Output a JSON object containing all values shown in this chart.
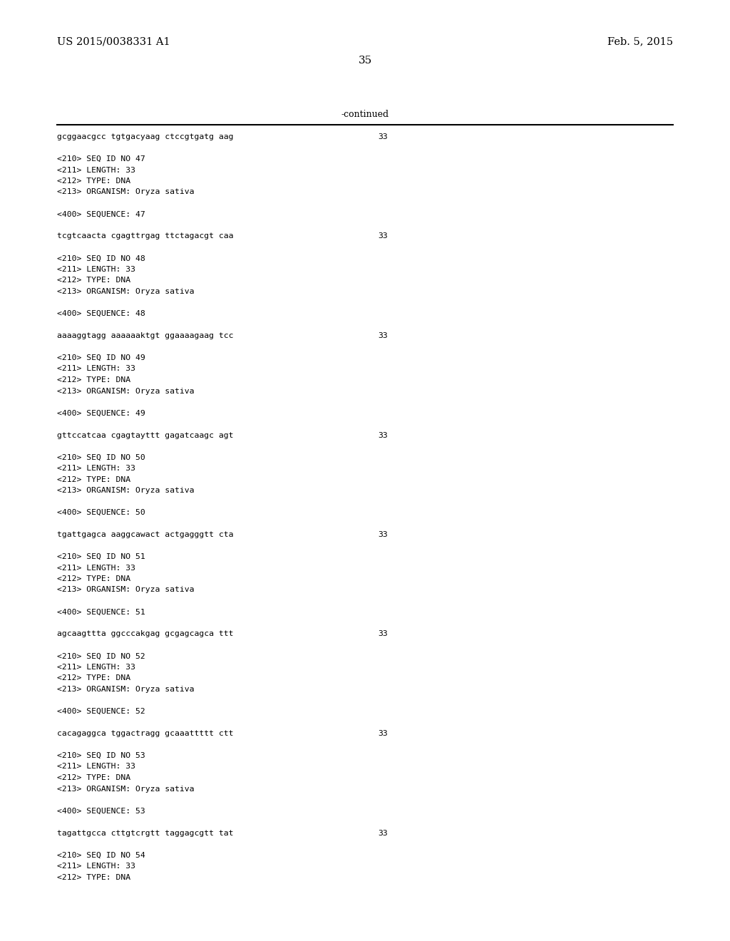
{
  "background_color": "#ffffff",
  "header_left": "US 2015/0038331 A1",
  "header_right": "Feb. 5, 2015",
  "page_number": "35",
  "continued_text": "-continued",
  "content_lines": [
    {
      "text": "gcggaacgcc tgtgacyaag ctccgtgatg aag",
      "number": "33"
    },
    {
      "text": ""
    },
    {
      "text": "<210> SEQ ID NO 47"
    },
    {
      "text": "<211> LENGTH: 33"
    },
    {
      "text": "<212> TYPE: DNA"
    },
    {
      "text": "<213> ORGANISM: Oryza sativa"
    },
    {
      "text": ""
    },
    {
      "text": "<400> SEQUENCE: 47"
    },
    {
      "text": ""
    },
    {
      "text": "tcgtcaacta cgagttrgag ttctagacgt caa",
      "number": "33"
    },
    {
      "text": ""
    },
    {
      "text": "<210> SEQ ID NO 48"
    },
    {
      "text": "<211> LENGTH: 33"
    },
    {
      "text": "<212> TYPE: DNA"
    },
    {
      "text": "<213> ORGANISM: Oryza sativa"
    },
    {
      "text": ""
    },
    {
      "text": "<400> SEQUENCE: 48"
    },
    {
      "text": ""
    },
    {
      "text": "aaaaggtagg aaaaaaktgt ggaaaagaag tcc",
      "number": "33"
    },
    {
      "text": ""
    },
    {
      "text": "<210> SEQ ID NO 49"
    },
    {
      "text": "<211> LENGTH: 33"
    },
    {
      "text": "<212> TYPE: DNA"
    },
    {
      "text": "<213> ORGANISM: Oryza sativa"
    },
    {
      "text": ""
    },
    {
      "text": "<400> SEQUENCE: 49"
    },
    {
      "text": ""
    },
    {
      "text": "gttccatcaa cgagtayttt gagatcaagc agt",
      "number": "33"
    },
    {
      "text": ""
    },
    {
      "text": "<210> SEQ ID NO 50"
    },
    {
      "text": "<211> LENGTH: 33"
    },
    {
      "text": "<212> TYPE: DNA"
    },
    {
      "text": "<213> ORGANISM: Oryza sativa"
    },
    {
      "text": ""
    },
    {
      "text": "<400> SEQUENCE: 50"
    },
    {
      "text": ""
    },
    {
      "text": "tgattgagca aaggcawact actgagggtt cta",
      "number": "33"
    },
    {
      "text": ""
    },
    {
      "text": "<210> SEQ ID NO 51"
    },
    {
      "text": "<211> LENGTH: 33"
    },
    {
      "text": "<212> TYPE: DNA"
    },
    {
      "text": "<213> ORGANISM: Oryza sativa"
    },
    {
      "text": ""
    },
    {
      "text": "<400> SEQUENCE: 51"
    },
    {
      "text": ""
    },
    {
      "text": "agcaagttta ggcccakgag gcgagcagca ttt",
      "number": "33"
    },
    {
      "text": ""
    },
    {
      "text": "<210> SEQ ID NO 52"
    },
    {
      "text": "<211> LENGTH: 33"
    },
    {
      "text": "<212> TYPE: DNA"
    },
    {
      "text": "<213> ORGANISM: Oryza sativa"
    },
    {
      "text": ""
    },
    {
      "text": "<400> SEQUENCE: 52"
    },
    {
      "text": ""
    },
    {
      "text": "cacagaggca tggactragg gcaaattttt ctt",
      "number": "33"
    },
    {
      "text": ""
    },
    {
      "text": "<210> SEQ ID NO 53"
    },
    {
      "text": "<211> LENGTH: 33"
    },
    {
      "text": "<212> TYPE: DNA"
    },
    {
      "text": "<213> ORGANISM: Oryza sativa"
    },
    {
      "text": ""
    },
    {
      "text": "<400> SEQUENCE: 53"
    },
    {
      "text": ""
    },
    {
      "text": "tagattgcca cttgtcrgtt taggagcgtt tat",
      "number": "33"
    },
    {
      "text": ""
    },
    {
      "text": "<210> SEQ ID NO 54"
    },
    {
      "text": "<211> LENGTH: 33"
    },
    {
      "text": "<212> TYPE: DNA"
    }
  ]
}
